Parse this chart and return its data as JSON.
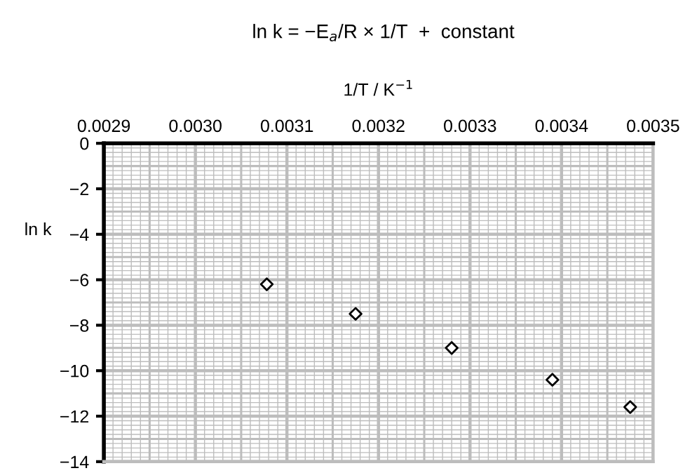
{
  "chart_data": {
    "type": "scatter",
    "title": "ln k = −E$_{a}$/R × 1/T  +  constant",
    "xlabel": "1/T / K$^{−1}$",
    "ylabel": "ln k",
    "x": [
      0.003078,
      0.003175,
      0.00328,
      0.00339,
      0.003475
    ],
    "series": [
      {
        "color": "#000000",
        "values": [
          -6.2,
          -7.5,
          -9.0,
          -10.4,
          -11.6
        ]
      }
    ],
    "xlim": [
      0.0029,
      0.0035
    ],
    "xticks": [
      {
        "value": 0.0029,
        "label": "0.0029"
      },
      {
        "value": 0.003,
        "label": "0.0030"
      },
      {
        "value": 0.0031,
        "label": "0.0031"
      },
      {
        "value": 0.0032,
        "label": "0.0032"
      },
      {
        "value": 0.0033,
        "label": "0.0033"
      },
      {
        "value": 0.0034,
        "label": "0.0034"
      },
      {
        "value": 0.0035,
        "label": "0.0035"
      }
    ],
    "ylim": [
      -14,
      0
    ],
    "yticks": [
      {
        "value": -14,
        "label": "−14"
      },
      {
        "value": -12,
        "label": "−12"
      },
      {
        "value": -10,
        "label": "−10"
      },
      {
        "value": -8,
        "label": "−8"
      },
      {
        "value": -6,
        "label": "−6"
      },
      {
        "value": -4,
        "label": "−4"
      },
      {
        "value": -2,
        "label": "−2"
      },
      0
    ],
    "grid": true,
    "marker": "diamond"
  }
}
